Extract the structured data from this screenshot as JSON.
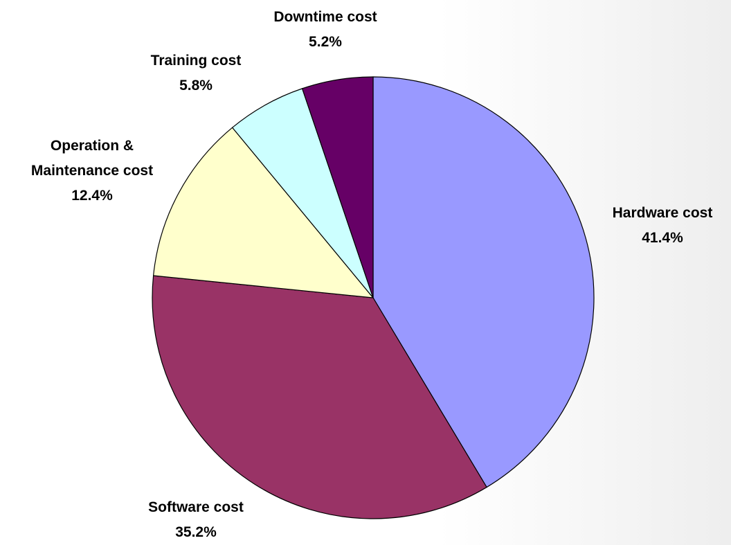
{
  "chart_data": {
    "type": "pie",
    "categories": [
      "Hardware cost",
      "Software cost",
      "Operation & Maintenance cost",
      "Training cost",
      "Downtime cost"
    ],
    "values": [
      41.4,
      35.2,
      12.4,
      5.8,
      5.2
    ],
    "value_labels": [
      "41.4%",
      "35.2%",
      "12.4%",
      "5.8%",
      "5.2%"
    ],
    "colors": [
      "#9999ff",
      "#993366",
      "#ffffcc",
      "#ccffff",
      "#660066"
    ]
  }
}
